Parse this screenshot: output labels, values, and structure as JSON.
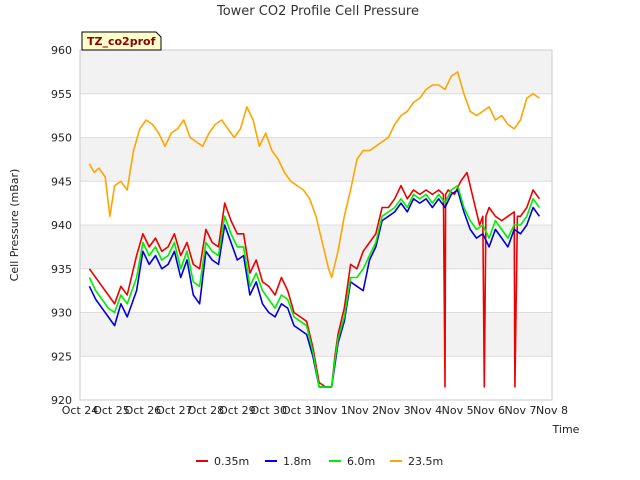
{
  "chart_data": {
    "type": "line",
    "title": "Tower CO2 Profile Cell Pressure",
    "xlabel": "Time",
    "ylabel": "Cell Pressure (mBar)",
    "site_badge": "TZ_co2prof",
    "ylim": [
      920,
      960
    ],
    "yticks": [
      920,
      925,
      930,
      935,
      940,
      945,
      950,
      955,
      960
    ],
    "xlim": [
      0,
      15
    ],
    "xtick_labels": [
      "Oct 24",
      "Oct 25",
      "Oct 26",
      "Oct 27",
      "Oct 28",
      "Oct 29",
      "Oct 30",
      "Oct 31",
      "Nov 1",
      "Nov 2",
      "Nov 3",
      "Nov 4",
      "Nov 5",
      "Nov 6",
      "Nov 7",
      "Nov 8"
    ],
    "grid": true,
    "legend_position": "bottom",
    "x_unit": "days since Oct 24 00:00",
    "series": [
      {
        "name": "0.35m",
        "color": "#ee0000",
        "x": [
          0.3,
          0.5,
          0.7,
          0.9,
          1.1,
          1.3,
          1.5,
          1.8,
          2.0,
          2.2,
          2.4,
          2.6,
          2.8,
          3.0,
          3.2,
          3.4,
          3.6,
          3.8,
          4.0,
          4.2,
          4.4,
          4.6,
          4.8,
          5.0,
          5.2,
          5.4,
          5.6,
          5.8,
          6.0,
          6.2,
          6.4,
          6.6,
          6.8,
          7.0,
          7.2,
          7.4,
          7.6,
          7.8,
          8.0,
          8.1,
          8.2,
          8.4,
          8.6,
          8.8,
          9.0,
          9.2,
          9.4,
          9.6,
          9.8,
          10.0,
          10.2,
          10.4,
          10.6,
          10.8,
          11.0,
          11.2,
          11.4,
          11.55,
          11.6,
          11.62,
          11.7,
          11.9,
          12.1,
          12.3,
          12.5,
          12.7,
          12.8,
          12.85,
          12.9,
          13.0,
          13.2,
          13.4,
          13.6,
          13.8,
          13.82,
          13.9,
          14.0,
          14.2,
          14.4,
          14.6
        ],
        "y": [
          935.0,
          934.0,
          933.0,
          932.0,
          931.0,
          933.0,
          932.0,
          936.5,
          939.0,
          937.5,
          938.5,
          937.0,
          937.5,
          939.0,
          936.5,
          938.0,
          935.5,
          935.0,
          939.5,
          938.0,
          937.5,
          942.5,
          940.5,
          939.0,
          939.0,
          934.5,
          936.0,
          933.5,
          933.0,
          932.0,
          934.0,
          932.5,
          930.0,
          929.5,
          929.0,
          926.0,
          922.0,
          921.5,
          921.5,
          925.0,
          927.5,
          930.5,
          935.5,
          935.0,
          937.0,
          938.0,
          939.0,
          942.0,
          942.0,
          943.0,
          944.5,
          943.0,
          944.0,
          943.5,
          944.0,
          943.5,
          944.0,
          943.5,
          921.5,
          943.5,
          944.0,
          943.5,
          945.0,
          946.0,
          943.0,
          940.0,
          941.0,
          921.5,
          941.0,
          942.0,
          941.0,
          940.5,
          941.0,
          941.5,
          921.5,
          941.0,
          941.0,
          942.0,
          944.0,
          943.0
        ]
      },
      {
        "name": "1.8m",
        "color": "#0000dd",
        "x": [
          0.3,
          0.5,
          0.7,
          0.9,
          1.1,
          1.3,
          1.5,
          1.8,
          2.0,
          2.2,
          2.4,
          2.6,
          2.8,
          3.0,
          3.2,
          3.4,
          3.6,
          3.8,
          4.0,
          4.2,
          4.4,
          4.6,
          4.8,
          5.0,
          5.2,
          5.4,
          5.6,
          5.8,
          6.0,
          6.2,
          6.4,
          6.6,
          6.8,
          7.0,
          7.2,
          7.4,
          7.6,
          7.8,
          8.0,
          8.1,
          8.2,
          8.4,
          8.6,
          8.8,
          9.0,
          9.2,
          9.4,
          9.6,
          9.8,
          10.0,
          10.2,
          10.4,
          10.6,
          10.8,
          11.0,
          11.2,
          11.4,
          11.6,
          11.8,
          12.0,
          12.2,
          12.4,
          12.6,
          12.8,
          13.0,
          13.2,
          13.4,
          13.6,
          13.8,
          14.0,
          14.2,
          14.4,
          14.6
        ],
        "y": [
          933.0,
          931.5,
          930.5,
          929.5,
          928.5,
          931.0,
          929.5,
          932.5,
          937.0,
          935.5,
          936.5,
          935.0,
          935.5,
          937.0,
          934.0,
          936.0,
          932.0,
          931.0,
          937.0,
          936.0,
          935.5,
          940.0,
          938.0,
          936.0,
          936.5,
          932.0,
          933.5,
          931.0,
          930.0,
          929.5,
          931.0,
          930.5,
          928.5,
          928.0,
          927.5,
          925.0,
          921.5,
          921.5,
          921.5,
          924.0,
          926.5,
          929.0,
          933.5,
          933.0,
          932.5,
          936.0,
          937.5,
          940.5,
          941.0,
          941.5,
          942.5,
          941.5,
          943.0,
          942.5,
          943.0,
          942.0,
          943.0,
          942.0,
          943.5,
          944.0,
          941.5,
          939.5,
          938.5,
          939.0,
          937.5,
          939.5,
          938.5,
          937.5,
          939.5,
          939.0,
          940.0,
          942.0,
          941.0
        ]
      },
      {
        "name": "6.0m",
        "color": "#00ee00",
        "x": [
          0.3,
          0.5,
          0.7,
          0.9,
          1.1,
          1.3,
          1.5,
          1.8,
          2.0,
          2.2,
          2.4,
          2.6,
          2.8,
          3.0,
          3.2,
          3.4,
          3.6,
          3.8,
          4.0,
          4.2,
          4.4,
          4.6,
          4.8,
          5.0,
          5.2,
          5.4,
          5.6,
          5.8,
          6.0,
          6.2,
          6.4,
          6.6,
          6.8,
          7.0,
          7.2,
          7.4,
          7.6,
          7.8,
          8.0,
          8.1,
          8.2,
          8.4,
          8.6,
          8.8,
          9.0,
          9.2,
          9.4,
          9.6,
          9.8,
          10.0,
          10.2,
          10.4,
          10.6,
          10.8,
          11.0,
          11.2,
          11.4,
          11.6,
          11.8,
          12.0,
          12.2,
          12.4,
          12.6,
          12.8,
          13.0,
          13.2,
          13.4,
          13.6,
          13.8,
          14.0,
          14.2,
          14.4,
          14.6
        ],
        "y": [
          934.0,
          932.5,
          931.5,
          930.5,
          930.0,
          932.0,
          931.0,
          934.0,
          938.0,
          936.5,
          937.5,
          936.0,
          936.5,
          938.0,
          935.0,
          937.0,
          933.5,
          933.0,
          938.0,
          937.0,
          936.5,
          941.0,
          939.0,
          937.5,
          937.5,
          933.0,
          934.5,
          932.5,
          931.5,
          930.5,
          932.0,
          931.5,
          929.5,
          929.0,
          928.5,
          925.5,
          921.5,
          921.5,
          921.5,
          924.5,
          927.0,
          929.5,
          934.0,
          934.0,
          935.0,
          936.5,
          938.0,
          941.0,
          941.5,
          942.0,
          943.0,
          942.0,
          943.5,
          943.0,
          943.5,
          942.5,
          943.5,
          942.5,
          944.0,
          944.5,
          942.0,
          940.5,
          939.5,
          940.0,
          938.5,
          940.5,
          939.5,
          938.5,
          940.0,
          940.0,
          941.0,
          943.0,
          942.0
        ]
      },
      {
        "name": "23.5m",
        "color": "#ffa500",
        "x": [
          0.3,
          0.45,
          0.6,
          0.8,
          0.95,
          1.1,
          1.3,
          1.5,
          1.7,
          1.9,
          2.1,
          2.3,
          2.5,
          2.7,
          2.9,
          3.1,
          3.3,
          3.5,
          3.7,
          3.9,
          4.1,
          4.3,
          4.5,
          4.7,
          4.9,
          5.1,
          5.3,
          5.5,
          5.7,
          5.9,
          6.1,
          6.3,
          6.5,
          6.7,
          6.9,
          7.1,
          7.3,
          7.5,
          7.7,
          7.9,
          8.0,
          8.2,
          8.4,
          8.6,
          8.8,
          9.0,
          9.2,
          9.4,
          9.6,
          9.8,
          10.0,
          10.2,
          10.4,
          10.6,
          10.8,
          11.0,
          11.2,
          11.4,
          11.6,
          11.8,
          12.0,
          12.2,
          12.4,
          12.6,
          12.8,
          13.0,
          13.2,
          13.4,
          13.6,
          13.8,
          14.0,
          14.2,
          14.4,
          14.6
        ],
        "y": [
          947.0,
          946.0,
          946.5,
          945.5,
          941.0,
          944.5,
          945.0,
          944.0,
          948.5,
          951.0,
          952.0,
          951.5,
          950.5,
          949.0,
          950.5,
          951.0,
          952.0,
          950.0,
          949.5,
          949.0,
          950.5,
          951.5,
          952.0,
          951.0,
          950.0,
          951.0,
          953.5,
          952.0,
          949.0,
          950.5,
          948.5,
          947.5,
          946.0,
          945.0,
          944.5,
          944.0,
          943.0,
          941.0,
          938.0,
          935.0,
          934.0,
          937.0,
          941.0,
          944.0,
          947.5,
          948.5,
          948.5,
          949.0,
          949.5,
          950.0,
          951.5,
          952.5,
          953.0,
          954.0,
          954.5,
          955.5,
          956.0,
          956.0,
          955.5,
          957.0,
          957.5,
          955.0,
          953.0,
          952.5,
          953.0,
          953.5,
          952.0,
          952.5,
          951.5,
          951.0,
          952.0,
          954.5,
          955.0,
          954.5
        ]
      }
    ]
  }
}
